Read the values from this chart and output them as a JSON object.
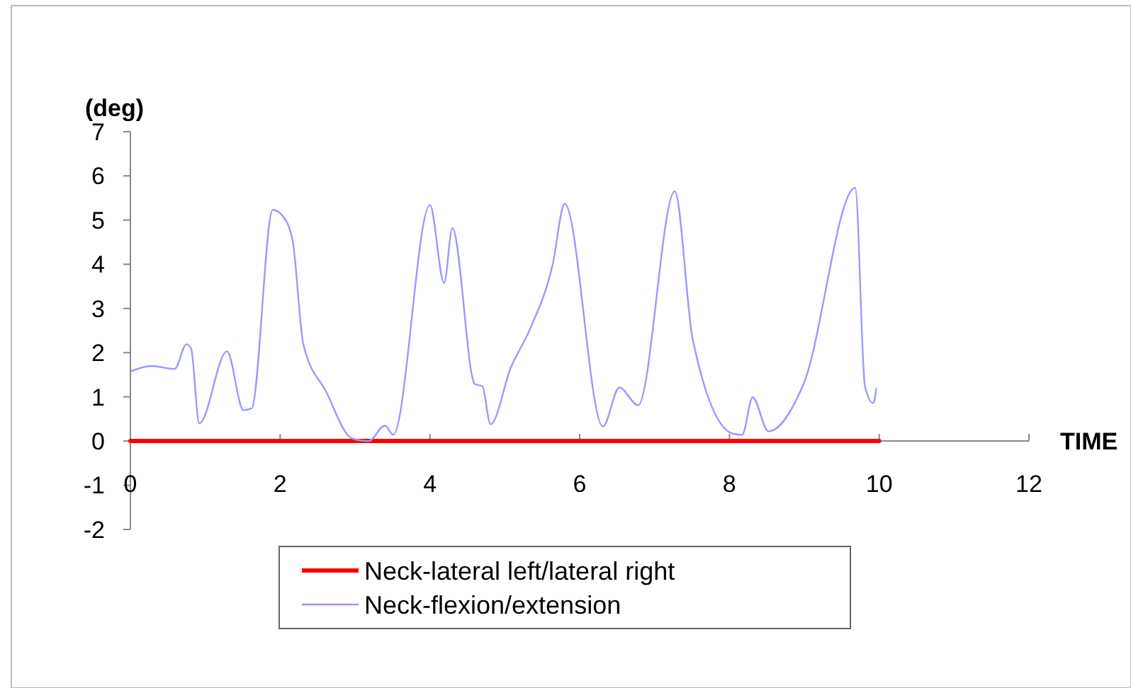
{
  "chart_data": {
    "type": "line",
    "xlabel": "TIME",
    "ylabel": "(deg)",
    "xlim": [
      0,
      12
    ],
    "xticks": [
      0,
      2,
      4,
      6,
      8,
      10,
      12
    ],
    "ylim": [
      -2,
      7
    ],
    "yticks": [
      -2,
      -1,
      0,
      1,
      2,
      3,
      4,
      5,
      6,
      7
    ],
    "grid": false,
    "legend": "bottom",
    "marker": "none",
    "line_style": "solid",
    "series": [
      {
        "name": "Neck-lateral left/lateral right",
        "color": "#ff0000",
        "x": [
          0,
          10
        ],
        "values": [
          0,
          0
        ]
      },
      {
        "name": "Neck-flexion/extension",
        "color": "#9999ff",
        "x": [
          0.01,
          0.28,
          0.59,
          0.75,
          0.81,
          0.92,
          1.29,
          1.51,
          1.62,
          1.9,
          2.08,
          2.17,
          2.31,
          2.61,
          2.96,
          3.18,
          3.4,
          3.51,
          4.0,
          4.19,
          4.3,
          4.6,
          4.7,
          4.81,
          5.08,
          5.33,
          5.64,
          5.8,
          6.31,
          6.53,
          6.78,
          7.27,
          7.51,
          8.04,
          8.17,
          8.31,
          8.52,
          8.99,
          9.68,
          9.81,
          9.92,
          9.96
        ],
        "values": [
          1.58,
          1.7,
          1.63,
          2.19,
          2.1,
          0.4,
          2.03,
          0.7,
          0.74,
          5.23,
          4.98,
          4.5,
          2.19,
          1.13,
          0.06,
          0.0,
          0.35,
          0.14,
          5.34,
          3.58,
          4.82,
          1.29,
          1.24,
          0.38,
          1.66,
          2.51,
          4.0,
          5.37,
          0.33,
          1.21,
          0.81,
          5.65,
          2.3,
          0.17,
          0.14,
          0.99,
          0.22,
          1.29,
          5.73,
          1.24,
          0.86,
          1.18
        ]
      }
    ]
  }
}
